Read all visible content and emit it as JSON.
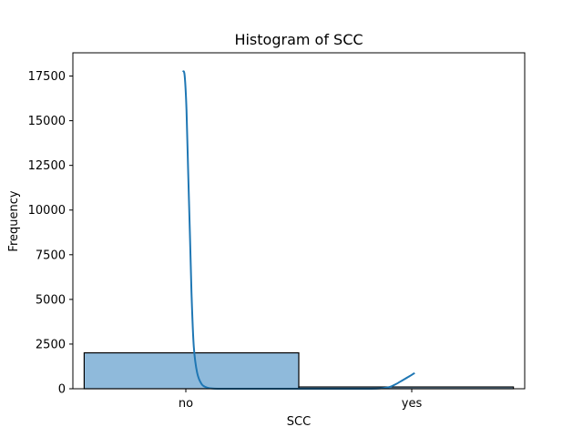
{
  "chart_data": {
    "type": "bar",
    "title": "Histogram of SCC",
    "xlabel": "SCC",
    "ylabel": "Frequency",
    "categories": [
      "no",
      "yes"
    ],
    "values": [
      2010,
      100
    ],
    "ylim": [
      0,
      18800
    ],
    "yticks": [
      0,
      2500,
      5000,
      7500,
      10000,
      12500,
      15000,
      17500
    ],
    "grid": false,
    "legend": "none",
    "bar_color": "#8fbadb",
    "kde": {
      "x": [
        -0.013,
        -0.005,
        0.003,
        0.01,
        0.018,
        0.025,
        0.035,
        0.05,
        0.07,
        0.095,
        0.12,
        0.15,
        0.2,
        0.3,
        0.5,
        0.7,
        0.82,
        0.86,
        0.9,
        0.93,
        0.96,
        0.99,
        1.013
      ],
      "y": [
        17800,
        17500,
        15600,
        12300,
        8700,
        5400,
        2400,
        900,
        260,
        60,
        15,
        0,
        0,
        0,
        0,
        0,
        0,
        20,
        90,
        260,
        480,
        700,
        880
      ],
      "color": "#1f77b4"
    }
  }
}
